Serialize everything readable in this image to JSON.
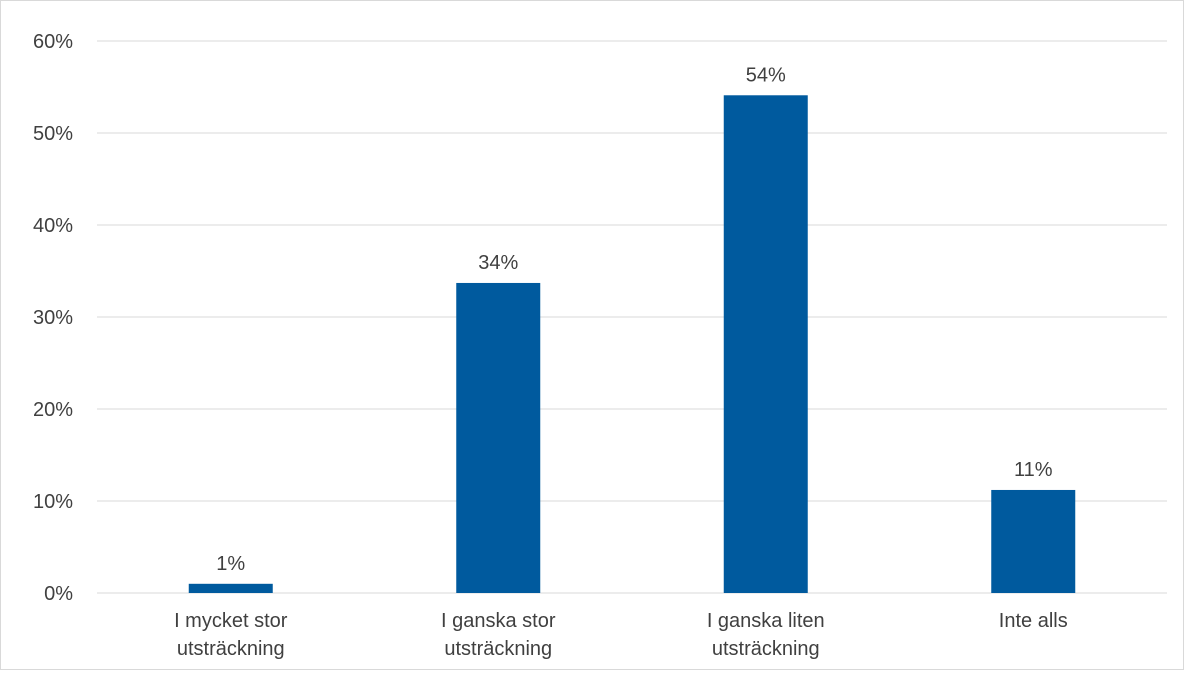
{
  "chart_data": {
    "type": "bar",
    "categories": [
      [
        "I mycket stor",
        "utsträckning"
      ],
      [
        "I ganska stor",
        "utsträckning"
      ],
      [
        "I ganska liten",
        "utsträckning"
      ],
      [
        "Inte alls"
      ]
    ],
    "values": [
      1,
      33.7,
      54.1,
      11.2
    ],
    "data_labels": [
      "1%",
      "34%",
      "54%",
      "11%"
    ],
    "title": "",
    "xlabel": "",
    "ylabel": "",
    "ylim": [
      0,
      60
    ],
    "yticks": [
      0,
      10,
      20,
      30,
      40,
      50,
      60
    ],
    "ytick_labels": [
      "0%",
      "10%",
      "20%",
      "30%",
      "40%",
      "50%",
      "60%"
    ],
    "grid": true,
    "legend": "none",
    "bar_color": "#005a9e",
    "grid_color": "#d9d9d9"
  }
}
